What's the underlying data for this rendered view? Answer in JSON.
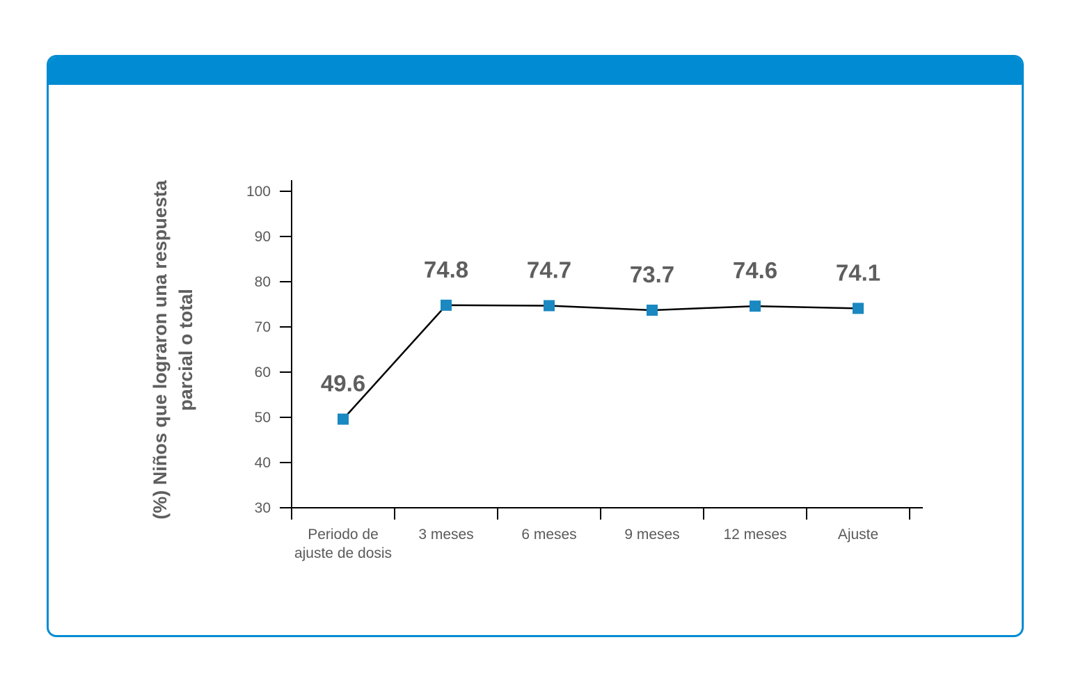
{
  "chart_data": {
    "type": "line",
    "title": "",
    "xlabel": "",
    "ylabel_lines": [
      "(%) Niños que lograron una respuesta",
      "parcial o total"
    ],
    "categories": [
      [
        "Periodo de",
        "ajuste de dosis"
      ],
      [
        "3 meses"
      ],
      [
        "6 meses"
      ],
      [
        "9 meses"
      ],
      [
        "12 meses"
      ],
      [
        "Ajuste"
      ]
    ],
    "series": [
      {
        "values": [
          49.6,
          74.8,
          74.7,
          73.7,
          74.6,
          74.1
        ],
        "data_labels": [
          "49.6",
          "74.8",
          "74.7",
          "73.7",
          "74.6",
          "74.1"
        ]
      }
    ],
    "ylim": [
      30,
      100
    ],
    "yticks": [
      30,
      40,
      50,
      60,
      70,
      80,
      90,
      100
    ],
    "grid": false,
    "legend": "none",
    "colors": {
      "frame": "#008bd2",
      "marker": "#1a88c1",
      "line": "#000000",
      "text": "#5e5e5e"
    }
  }
}
